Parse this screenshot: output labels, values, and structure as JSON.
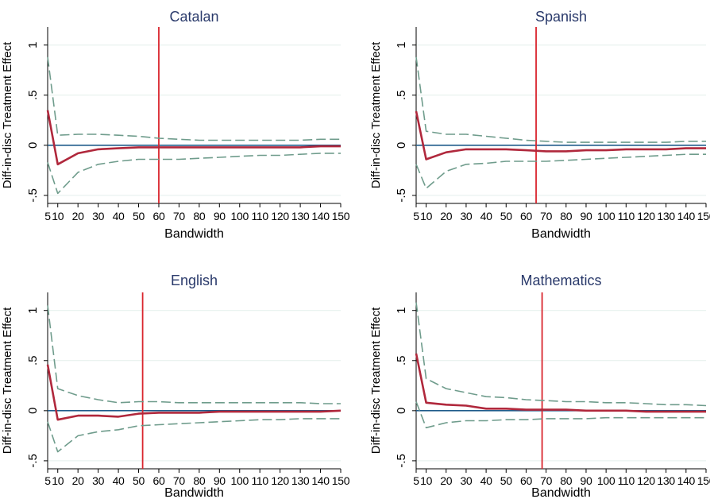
{
  "chart_data": [
    {
      "type": "line",
      "title": "Catalan",
      "xlabel": "Bandwidth",
      "ylabel": "Diff-in-disc Treatment Effect",
      "xticks": [
        5,
        10,
        20,
        30,
        40,
        50,
        60,
        70,
        80,
        90,
        100,
        110,
        120,
        130,
        140,
        150
      ],
      "xtick_labels": [
        "5",
        "10",
        "20",
        "30",
        "40",
        "50",
        "60",
        "70",
        "80",
        "90",
        "100",
        "110",
        "120",
        "130",
        "140",
        "150"
      ],
      "yticks": [
        -0.5,
        0,
        0.5,
        1
      ],
      "ytick_labels": [
        "-.5",
        "0",
        ".5",
        "1"
      ],
      "xlim": [
        5,
        150
      ],
      "ylim": [
        -0.58,
        1.18
      ],
      "grid": true,
      "zero_line": 0,
      "vline": 60,
      "x": [
        5,
        10,
        20,
        30,
        40,
        50,
        60,
        70,
        80,
        90,
        100,
        110,
        120,
        130,
        140,
        150
      ],
      "series": [
        {
          "values": [
            0.35,
            -0.19,
            -0.08,
            -0.04,
            -0.03,
            -0.02,
            -0.02,
            -0.02,
            -0.02,
            -0.02,
            -0.02,
            -0.02,
            -0.02,
            -0.02,
            -0.01,
            -0.01
          ]
        },
        {
          "values": [
            0.88,
            0.1,
            0.11,
            0.11,
            0.1,
            0.09,
            0.07,
            0.06,
            0.05,
            0.05,
            0.05,
            0.05,
            0.05,
            0.05,
            0.06,
            0.06
          ]
        },
        {
          "values": [
            -0.17,
            -0.48,
            -0.27,
            -0.19,
            -0.16,
            -0.14,
            -0.14,
            -0.14,
            -0.13,
            -0.12,
            -0.11,
            -0.1,
            -0.1,
            -0.09,
            -0.08,
            -0.08
          ]
        }
      ]
    },
    {
      "type": "line",
      "title": "Spanish",
      "xlabel": "Bandwidth",
      "ylabel": "Diff-in-disc Treatment Effect",
      "xticks": [
        5,
        10,
        20,
        30,
        40,
        50,
        60,
        70,
        80,
        90,
        100,
        110,
        120,
        130,
        140,
        150
      ],
      "xtick_labels": [
        "5",
        "10",
        "20",
        "30",
        "40",
        "50",
        "60",
        "70",
        "80",
        "90",
        "100",
        "110",
        "120",
        "130",
        "140",
        "150"
      ],
      "yticks": [
        -0.5,
        0,
        0.5,
        1
      ],
      "ytick_labels": [
        "-.5",
        "0",
        ".5",
        "1"
      ],
      "xlim": [
        5,
        150
      ],
      "ylim": [
        -0.58,
        1.18
      ],
      "grid": true,
      "zero_line": 0,
      "vline": 65,
      "x": [
        5,
        10,
        20,
        30,
        40,
        50,
        60,
        70,
        80,
        90,
        100,
        110,
        120,
        130,
        140,
        150
      ],
      "series": [
        {
          "values": [
            0.34,
            -0.14,
            -0.07,
            -0.04,
            -0.04,
            -0.04,
            -0.05,
            -0.06,
            -0.06,
            -0.05,
            -0.05,
            -0.04,
            -0.04,
            -0.04,
            -0.03,
            -0.03
          ]
        },
        {
          "values": [
            0.88,
            0.14,
            0.11,
            0.11,
            0.09,
            0.07,
            0.05,
            0.04,
            0.03,
            0.03,
            0.03,
            0.03,
            0.03,
            0.03,
            0.04,
            0.04
          ]
        },
        {
          "values": [
            -0.19,
            -0.43,
            -0.26,
            -0.19,
            -0.18,
            -0.16,
            -0.16,
            -0.16,
            -0.15,
            -0.14,
            -0.13,
            -0.12,
            -0.11,
            -0.1,
            -0.09,
            -0.09
          ]
        }
      ]
    },
    {
      "type": "line",
      "title": "English",
      "xlabel": "Bandwidth",
      "ylabel": "Diff-in-disc Treatment Effect",
      "xticks": [
        5,
        10,
        20,
        30,
        40,
        50,
        60,
        70,
        80,
        90,
        100,
        110,
        120,
        130,
        140,
        150
      ],
      "xtick_labels": [
        "5",
        "10",
        "20",
        "30",
        "40",
        "50",
        "60",
        "70",
        "80",
        "90",
        "100",
        "110",
        "120",
        "130",
        "140",
        "150"
      ],
      "yticks": [
        -0.5,
        0,
        0.5,
        1
      ],
      "ytick_labels": [
        "-.5",
        "0",
        ".5",
        "1"
      ],
      "xlim": [
        5,
        150
      ],
      "ylim": [
        -0.58,
        1.18
      ],
      "grid": true,
      "zero_line": 0,
      "vline": 52,
      "x": [
        5,
        10,
        20,
        30,
        40,
        50,
        60,
        70,
        80,
        90,
        100,
        110,
        120,
        130,
        140,
        150
      ],
      "series": [
        {
          "values": [
            0.46,
            -0.09,
            -0.05,
            -0.05,
            -0.06,
            -0.03,
            -0.02,
            -0.02,
            -0.02,
            -0.01,
            -0.01,
            -0.01,
            -0.01,
            -0.01,
            -0.01,
            0.0
          ]
        },
        {
          "values": [
            1.05,
            0.22,
            0.15,
            0.11,
            0.08,
            0.09,
            0.09,
            0.08,
            0.08,
            0.08,
            0.08,
            0.08,
            0.08,
            0.08,
            0.07,
            0.07
          ]
        },
        {
          "values": [
            -0.11,
            -0.41,
            -0.25,
            -0.21,
            -0.19,
            -0.15,
            -0.14,
            -0.13,
            -0.12,
            -0.11,
            -0.1,
            -0.09,
            -0.09,
            -0.08,
            -0.08,
            -0.08
          ]
        }
      ]
    },
    {
      "type": "line",
      "title": "Mathematics",
      "xlabel": "Bandwidth",
      "ylabel": "Diff-in-disc Treatment Effect",
      "xticks": [
        5,
        10,
        20,
        30,
        40,
        50,
        60,
        70,
        80,
        90,
        100,
        110,
        120,
        130,
        140,
        150
      ],
      "xtick_labels": [
        "5",
        "10",
        "20",
        "30",
        "40",
        "50",
        "60",
        "70",
        "80",
        "90",
        "100",
        "110",
        "120",
        "130",
        "140",
        "150"
      ],
      "yticks": [
        -0.5,
        0,
        0.5,
        1
      ],
      "ytick_labels": [
        "-.5",
        "0",
        ".5",
        "1"
      ],
      "xlim": [
        5,
        150
      ],
      "ylim": [
        -0.58,
        1.18
      ],
      "grid": true,
      "zero_line": 0,
      "vline": 68,
      "x": [
        5,
        10,
        20,
        30,
        40,
        50,
        60,
        70,
        80,
        90,
        100,
        110,
        120,
        130,
        140,
        150
      ],
      "series": [
        {
          "values": [
            0.57,
            0.08,
            0.06,
            0.05,
            0.02,
            0.02,
            0.01,
            0.01,
            0.01,
            0.0,
            0.0,
            0.0,
            -0.01,
            -0.01,
            -0.01,
            -0.01
          ]
        },
        {
          "values": [
            1.08,
            0.32,
            0.22,
            0.18,
            0.14,
            0.13,
            0.11,
            0.1,
            0.09,
            0.09,
            0.08,
            0.08,
            0.07,
            0.06,
            0.06,
            0.05
          ]
        },
        {
          "values": [
            0.09,
            -0.17,
            -0.12,
            -0.1,
            -0.1,
            -0.09,
            -0.09,
            -0.08,
            -0.08,
            -0.08,
            -0.07,
            -0.07,
            -0.07,
            -0.07,
            -0.07,
            -0.07
          ]
        }
      ]
    }
  ],
  "style": {
    "point_estimate_color": "#b0283c",
    "ci_color": "#6f9c8c",
    "vline_color": "#d9262e",
    "zero_line_color": "#1f5b8a",
    "grid_color": "#e3efec",
    "title_color": "#2a3a6b",
    "text_color": "#000000"
  }
}
